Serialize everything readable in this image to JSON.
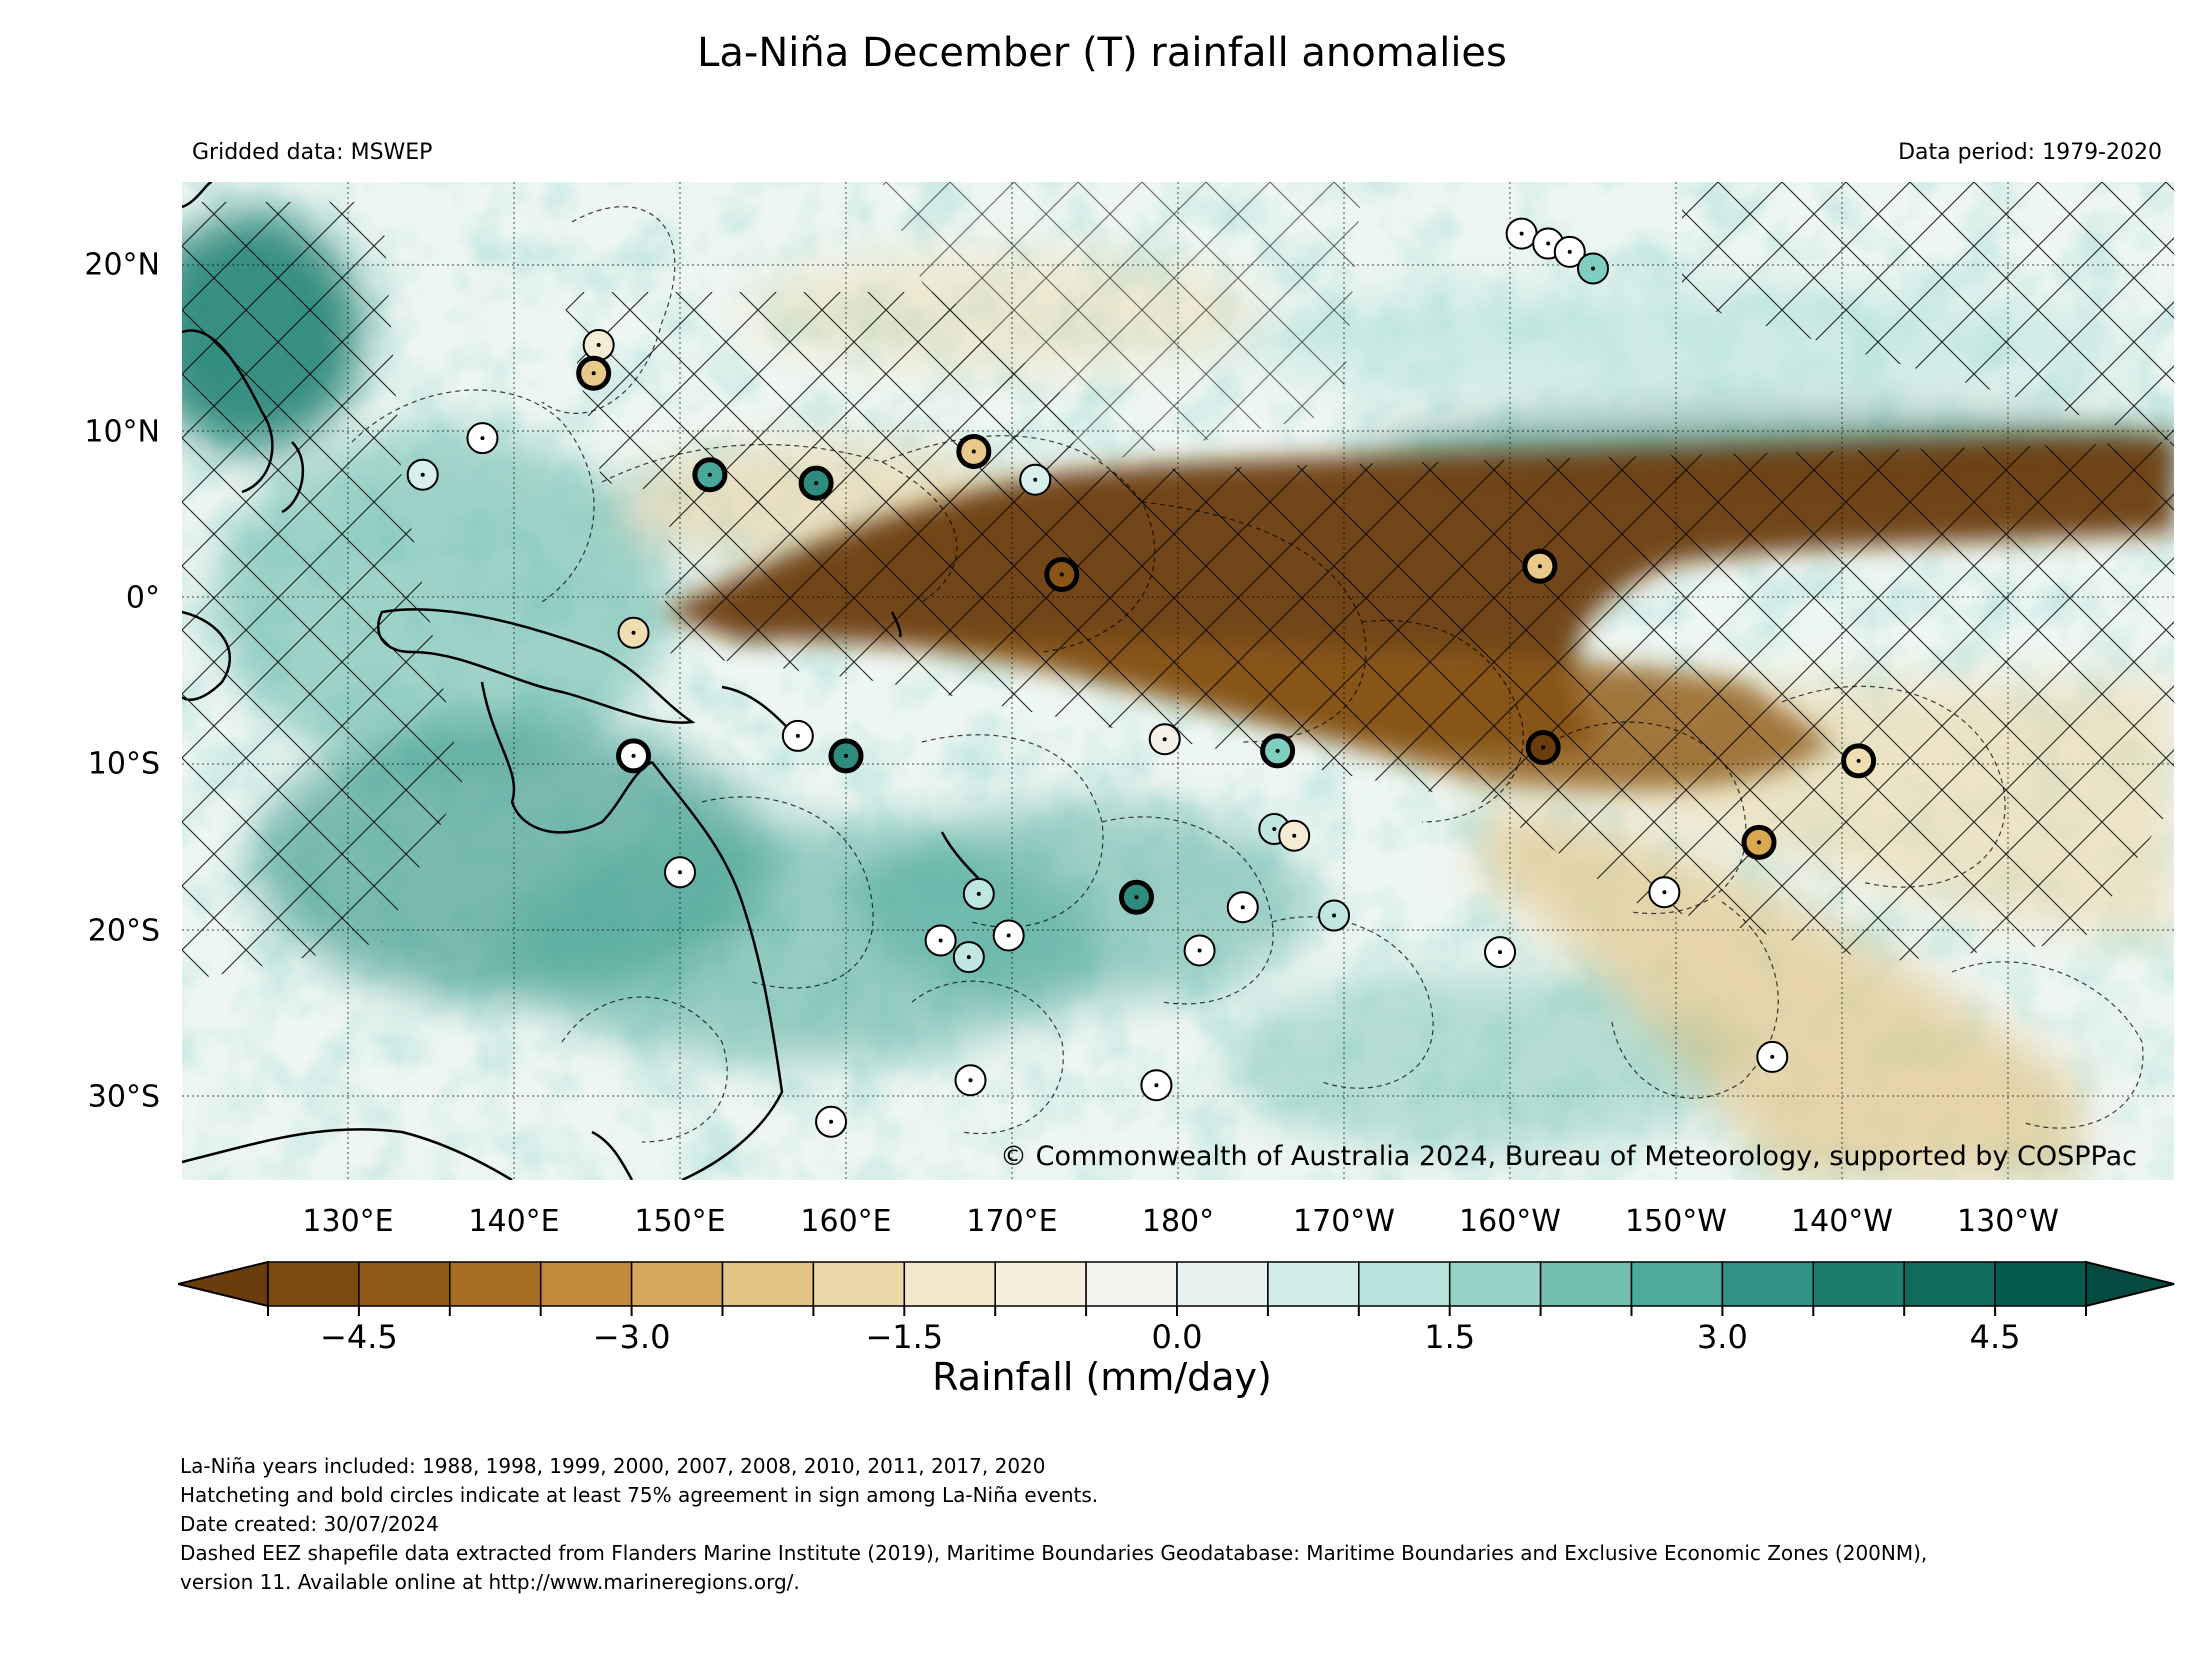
{
  "title": "La-Niña December (T) rainfall anomalies",
  "subtitle_left": "Gridded data: MSWEP",
  "subtitle_right": "Data period: 1979-2020",
  "copyright": "© Commonwealth of Australia 2024, Bureau of Meteorology, supported by COSPPac",
  "map": {
    "lon_range": [
      120,
      240
    ],
    "lat_range": [
      -35,
      25
    ],
    "lon_labels": [
      {
        "lon": 130,
        "text": "130°E"
      },
      {
        "lon": 140,
        "text": "140°E"
      },
      {
        "lon": 150,
        "text": "150°E"
      },
      {
        "lon": 160,
        "text": "160°E"
      },
      {
        "lon": 170,
        "text": "170°E"
      },
      {
        "lon": 180,
        "text": "180°"
      },
      {
        "lon": 190,
        "text": "170°W"
      },
      {
        "lon": 200,
        "text": "160°W"
      },
      {
        "lon": 210,
        "text": "150°W"
      },
      {
        "lon": 220,
        "text": "140°W"
      },
      {
        "lon": 230,
        "text": "130°W"
      }
    ],
    "lat_labels": [
      {
        "lat": 20,
        "text": "20°N"
      },
      {
        "lat": 10,
        "text": "10°N"
      },
      {
        "lat": 0,
        "text": "0°"
      },
      {
        "lat": -10,
        "text": "10°S"
      },
      {
        "lat": -20,
        "text": "20°S"
      },
      {
        "lat": -30,
        "text": "30°S"
      }
    ],
    "dry_band_color": "#6b3c0c",
    "wet_color": "#1f8a7a",
    "station_circles": [
      {
        "lon": 145.1,
        "lat": 15.2,
        "color": "#f5ecd5",
        "bold": false
      },
      {
        "lon": 144.8,
        "lat": 13.5,
        "color": "#e8c98a",
        "bold": true
      },
      {
        "lon": 138.1,
        "lat": 9.6,
        "color": "#ffffff",
        "bold": false
      },
      {
        "lon": 134.5,
        "lat": 7.4,
        "color": "#d7f0ec",
        "bold": false
      },
      {
        "lon": 151.8,
        "lat": 7.4,
        "color": "#4aa89a",
        "bold": true
      },
      {
        "lon": 158.2,
        "lat": 6.9,
        "color": "#2e8c7e",
        "bold": true
      },
      {
        "lon": 167.7,
        "lat": 8.8,
        "color": "#e8c98a",
        "bold": true
      },
      {
        "lon": 171.4,
        "lat": 7.1,
        "color": "#d7f0ec",
        "bold": false
      },
      {
        "lon": 173.0,
        "lat": 1.4,
        "color": "#8a5414",
        "bold": true
      },
      {
        "lon": 147.2,
        "lat": -2.1,
        "color": "#f0deb0",
        "bold": false
      },
      {
        "lon": 147.2,
        "lat": -9.5,
        "color": "#ffffff",
        "bold": true
      },
      {
        "lon": 157.1,
        "lat": -8.3,
        "color": "#ffffff",
        "bold": false
      },
      {
        "lon": 160.0,
        "lat": -9.5,
        "color": "#2e8c7e",
        "bold": true
      },
      {
        "lon": 179.2,
        "lat": -8.5,
        "color": "#f6f1e6",
        "bold": false
      },
      {
        "lon": 186.0,
        "lat": -9.2,
        "color": "#7ecfc2",
        "bold": true
      },
      {
        "lon": 201.8,
        "lat": 1.9,
        "color": "#e8c98a",
        "bold": true
      },
      {
        "lon": 202.0,
        "lat": -9.0,
        "color": "#6b3c0c",
        "bold": true
      },
      {
        "lon": 221.0,
        "lat": -9.8,
        "color": "#f0deb0",
        "bold": true
      },
      {
        "lon": 215.0,
        "lat": -14.7,
        "color": "#d9a84f",
        "bold": true
      },
      {
        "lon": 185.8,
        "lat": -13.9,
        "color": "#bfe6e0",
        "bold": false
      },
      {
        "lon": 187.0,
        "lat": -14.3,
        "color": "#f5ecd5",
        "bold": false
      },
      {
        "lon": 150.0,
        "lat": -16.5,
        "color": "#ffffff",
        "bold": false
      },
      {
        "lon": 168.0,
        "lat": -17.8,
        "color": "#bfe6e0",
        "bold": false
      },
      {
        "lon": 177.5,
        "lat": -18.0,
        "color": "#2e8c7e",
        "bold": true
      },
      {
        "lon": 183.9,
        "lat": -18.6,
        "color": "#ffffff",
        "bold": false
      },
      {
        "lon": 189.4,
        "lat": -19.1,
        "color": "#bfe6e0",
        "bold": false
      },
      {
        "lon": 209.3,
        "lat": -17.7,
        "color": "#ffffff",
        "bold": false
      },
      {
        "lon": 165.7,
        "lat": -20.6,
        "color": "#ffffff",
        "bold": false
      },
      {
        "lon": 167.4,
        "lat": -21.6,
        "color": "#bfe6e0",
        "bold": false
      },
      {
        "lon": 169.8,
        "lat": -20.3,
        "color": "#ffffff",
        "bold": false
      },
      {
        "lon": 181.3,
        "lat": -21.2,
        "color": "#ffffff",
        "bold": false
      },
      {
        "lon": 199.4,
        "lat": -21.3,
        "color": "#ffffff",
        "bold": false
      },
      {
        "lon": 215.8,
        "lat": -27.6,
        "color": "#ffffff",
        "bold": false
      },
      {
        "lon": 167.5,
        "lat": -29.0,
        "color": "#ffffff",
        "bold": false
      },
      {
        "lon": 178.7,
        "lat": -29.3,
        "color": "#ffffff",
        "bold": false
      },
      {
        "lon": 159.1,
        "lat": -31.5,
        "color": "#ffffff",
        "bold": false
      },
      {
        "lon": 200.7,
        "lat": 21.9,
        "color": "#ffffff",
        "bold": false
      },
      {
        "lon": 202.3,
        "lat": 21.3,
        "color": "#ffffff",
        "bold": false
      },
      {
        "lon": 203.6,
        "lat": 20.8,
        "color": "#ffffff",
        "bold": false
      },
      {
        "lon": 205.0,
        "lat": 19.8,
        "color": "#7ecfc2",
        "bold": false
      }
    ]
  },
  "colorbar": {
    "label": "Rainfall (mm/day)",
    "min": -5.0,
    "max": 5.0,
    "step": 0.5,
    "colors": [
      "#7a4a0e",
      "#8f5a17",
      "#a86e24",
      "#c18a3a",
      "#d3a75c",
      "#e2c385",
      "#ecd7a8",
      "#f2e6c9",
      "#f6eedc",
      "#f3f2ec",
      "#e7f3f1",
      "#d2ece8",
      "#b5e2da",
      "#95d2c7",
      "#72bfb2",
      "#4fa99b",
      "#2f9284",
      "#1d7c6e",
      "#0f6a5d",
      "#055a4e"
    ],
    "under_color": "#6b3c0c",
    "over_color": "#044a40",
    "ticks": [
      {
        "value": -4.5,
        "text": "−4.5"
      },
      {
        "value": -3.0,
        "text": "−3.0"
      },
      {
        "value": -1.5,
        "text": "−1.5"
      },
      {
        "value": 0.0,
        "text": "0.0"
      },
      {
        "value": 1.5,
        "text": "1.5"
      },
      {
        "value": 3.0,
        "text": "3.0"
      },
      {
        "value": 4.5,
        "text": "4.5"
      }
    ]
  },
  "footer": [
    "La-Niña years included: 1988, 1998, 1999, 2000, 2007, 2008, 2010, 2011, 2017, 2020",
    "Hatcheting and bold circles indicate at least 75% agreement in sign among La-Niña events.",
    "Date created: 30/07/2024",
    "Dashed EEZ shapefile data extracted from Flanders Marine Institute (2019), Maritime Boundaries Geodatabase: Maritime Boundaries and Exclusive Economic Zones (200NM),",
    "version 11. Available online at http://www.marineregions.org/."
  ]
}
